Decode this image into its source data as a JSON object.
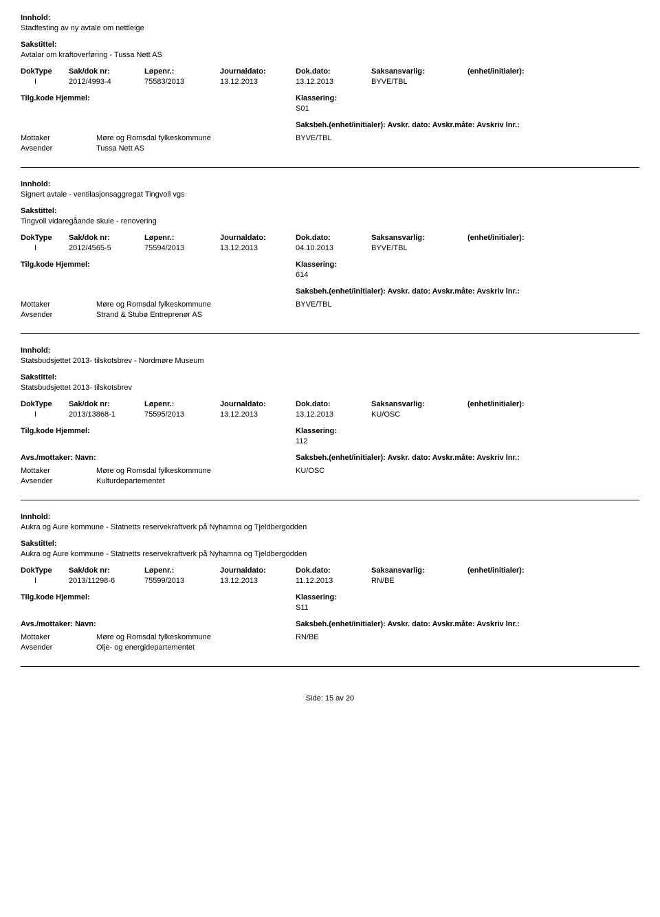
{
  "labels": {
    "innhold": "Innhold:",
    "sakstittel": "Sakstittel:",
    "doktype": "DokType",
    "sakdok": "Sak/dok nr:",
    "lopenr": "Løpenr.:",
    "journaldato": "Journaldato:",
    "dokdato": "Dok.dato:",
    "saksansvarlig": "Saksansvarlig:",
    "enhet": "(enhet/initialer):",
    "tilgkode": "Tilg.kode",
    "hjemmel": "Hjemmel:",
    "klassering": "Klassering:",
    "avs_header": "Avs./mottaker: Navn:",
    "saksbeh_line": "Saksbeh.(enhet/initialer): Avskr. dato:  Avskr.måte:  Avskriv lnr.:",
    "mottaker": "Mottaker",
    "avsender": "Avsender",
    "side": "Side:",
    "av": "av"
  },
  "entries": [
    {
      "innhold": "Stadfesting av ny avtale om nettleige",
      "sakstittel": "Avtalar om kraftoverføring - Tussa Nett AS",
      "doktype": "I",
      "sakdok": "2012/4993-4",
      "lopenr": "75583/2013",
      "journaldato": "13.12.2013",
      "dokdato": "13.12.2013",
      "saksansvarlig": "BYVE/TBL",
      "klassering": "S01",
      "mottaker_name": "Møre og Romsdal fylkeskommune",
      "mottaker_code": "BYVE/TBL",
      "avsender_name": "Tussa Nett AS",
      "show_avs_header": false
    },
    {
      "innhold": "Signert avtale - ventilasjonsaggregat Tingvoll vgs",
      "sakstittel": "Tingvoll vidaregåande skule - renovering",
      "doktype": "I",
      "sakdok": "2012/4565-5",
      "lopenr": "75594/2013",
      "journaldato": "13.12.2013",
      "dokdato": "04.10.2013",
      "saksansvarlig": "BYVE/TBL",
      "klassering": "614",
      "mottaker_name": "Møre og Romsdal fylkeskommune",
      "mottaker_code": "BYVE/TBL",
      "avsender_name": "Strand & Stubø Entreprenør AS",
      "show_avs_header": false
    },
    {
      "innhold": "Statsbudsjettet 2013- tilskotsbrev - Nordmøre Museum",
      "sakstittel": "Statsbudsjettet 2013- tilskotsbrev",
      "doktype": "I",
      "sakdok": "2013/13868-1",
      "lopenr": "75595/2013",
      "journaldato": "13.12.2013",
      "dokdato": "13.12.2013",
      "saksansvarlig": "KU/OSC",
      "klassering": "112",
      "mottaker_name": "Møre og Romsdal fylkeskommune",
      "mottaker_code": "KU/OSC",
      "avsender_name": "Kulturdepartementet",
      "show_avs_header": true
    },
    {
      "innhold": "Aukra og Aure kommune - Statnetts reservekraftverk på Nyhamna og Tjeldbergodden",
      "sakstittel": "Aukra og Aure kommune - Statnetts reservekraftverk på Nyhamna og Tjeldbergodden",
      "doktype": "I",
      "sakdok": "2013/11298-6",
      "lopenr": "75599/2013",
      "journaldato": "13.12.2013",
      "dokdato": "11.12.2013",
      "saksansvarlig": "RN/BE",
      "klassering": "S11",
      "mottaker_name": "Møre og Romsdal fylkeskommune",
      "mottaker_code": "RN/BE",
      "avsender_name": "Olje- og energidepartementet",
      "show_avs_header": true
    }
  ],
  "footer": {
    "page": "15",
    "total": "20"
  }
}
